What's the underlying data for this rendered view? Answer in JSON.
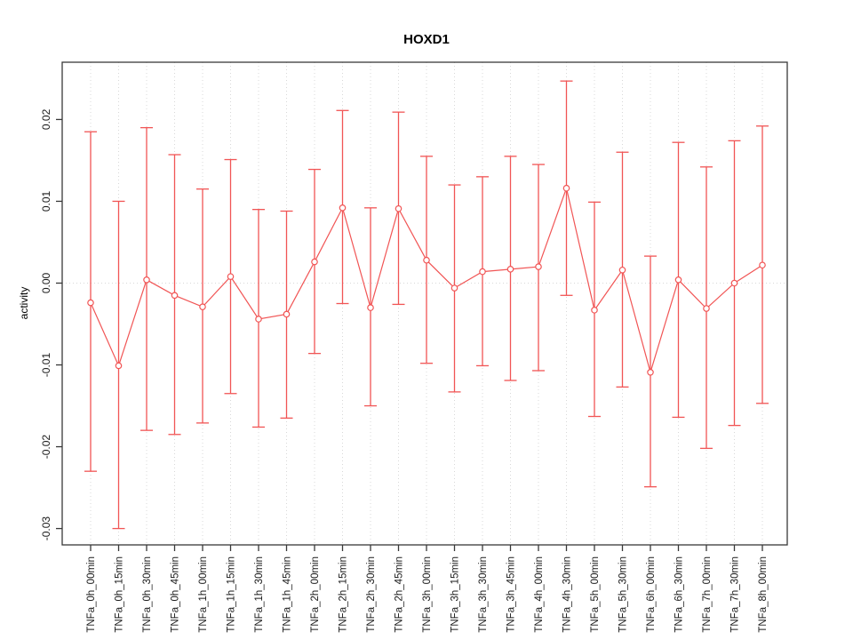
{
  "chart_data": {
    "type": "line",
    "title": "HOXD1",
    "xlabel": "",
    "ylabel": "activity",
    "legend": "none",
    "marker": "open-circle",
    "error_bars": true,
    "categories": [
      "TNFa_0h_00min",
      "TNFa_0h_15min",
      "TNFa_0h_30min",
      "TNFa_0h_45min",
      "TNFa_1h_00min",
      "TNFa_1h_15min",
      "TNFa_1h_30min",
      "TNFa_1h_45min",
      "TNFa_2h_00min",
      "TNFa_2h_15min",
      "TNFa_2h_30min",
      "TNFa_2h_45min",
      "TNFa_3h_00min",
      "TNFa_3h_15min",
      "TNFa_3h_30min",
      "TNFa_3h_45min",
      "TNFa_4h_00min",
      "TNFa_4h_30min",
      "TNFa_5h_00min",
      "TNFa_5h_30min",
      "TNFa_6h_00min",
      "TNFa_6h_30min",
      "TNFa_7h_00min",
      "TNFa_7h_30min",
      "TNFa_8h_00min"
    ],
    "series": [
      {
        "name": "activity",
        "values": [
          -0.0024,
          -0.0101,
          0.0004,
          -0.0015,
          -0.0029,
          0.0008,
          -0.0044,
          -0.0038,
          0.0026,
          0.0092,
          -0.003,
          0.0091,
          0.0028,
          -0.0006,
          0.0014,
          0.0017,
          0.002,
          0.0116,
          -0.0033,
          0.0016,
          -0.0109,
          0.0004,
          -0.0031,
          0.0,
          0.0022
        ],
        "upper": [
          0.0185,
          0.01,
          0.019,
          0.0157,
          0.0115,
          0.0151,
          0.009,
          0.0088,
          0.0139,
          0.0211,
          0.0092,
          0.0209,
          0.0155,
          0.012,
          0.013,
          0.0155,
          0.0145,
          0.0247,
          0.0099,
          0.016,
          0.0033,
          0.0172,
          0.0142,
          0.0174,
          0.0192
        ],
        "lower": [
          -0.023,
          -0.03,
          -0.018,
          -0.0185,
          -0.0171,
          -0.0135,
          -0.0176,
          -0.0165,
          -0.0086,
          -0.0025,
          -0.015,
          -0.0026,
          -0.0098,
          -0.0133,
          -0.0101,
          -0.0119,
          -0.0107,
          -0.0015,
          -0.0163,
          -0.0127,
          -0.0249,
          -0.0164,
          -0.0202,
          -0.0174,
          -0.0147
        ]
      }
    ],
    "ylim": [
      -0.032,
      0.027
    ],
    "yticks": [
      0.02,
      0.01,
      0.0,
      -0.01,
      -0.02,
      -0.03
    ],
    "ytick_labels": [
      "0.02",
      "0.01",
      "0.00",
      "-0.01",
      "-0.02",
      "-0.03"
    ],
    "grid": {
      "vertical_dotted": true,
      "zero_dotted_line": true
    },
    "colors": {
      "series": "#f15555",
      "grid": "#d8d8d8",
      "axis": "#383838",
      "text": "#1a1a1a",
      "background": "#ffffff"
    }
  }
}
